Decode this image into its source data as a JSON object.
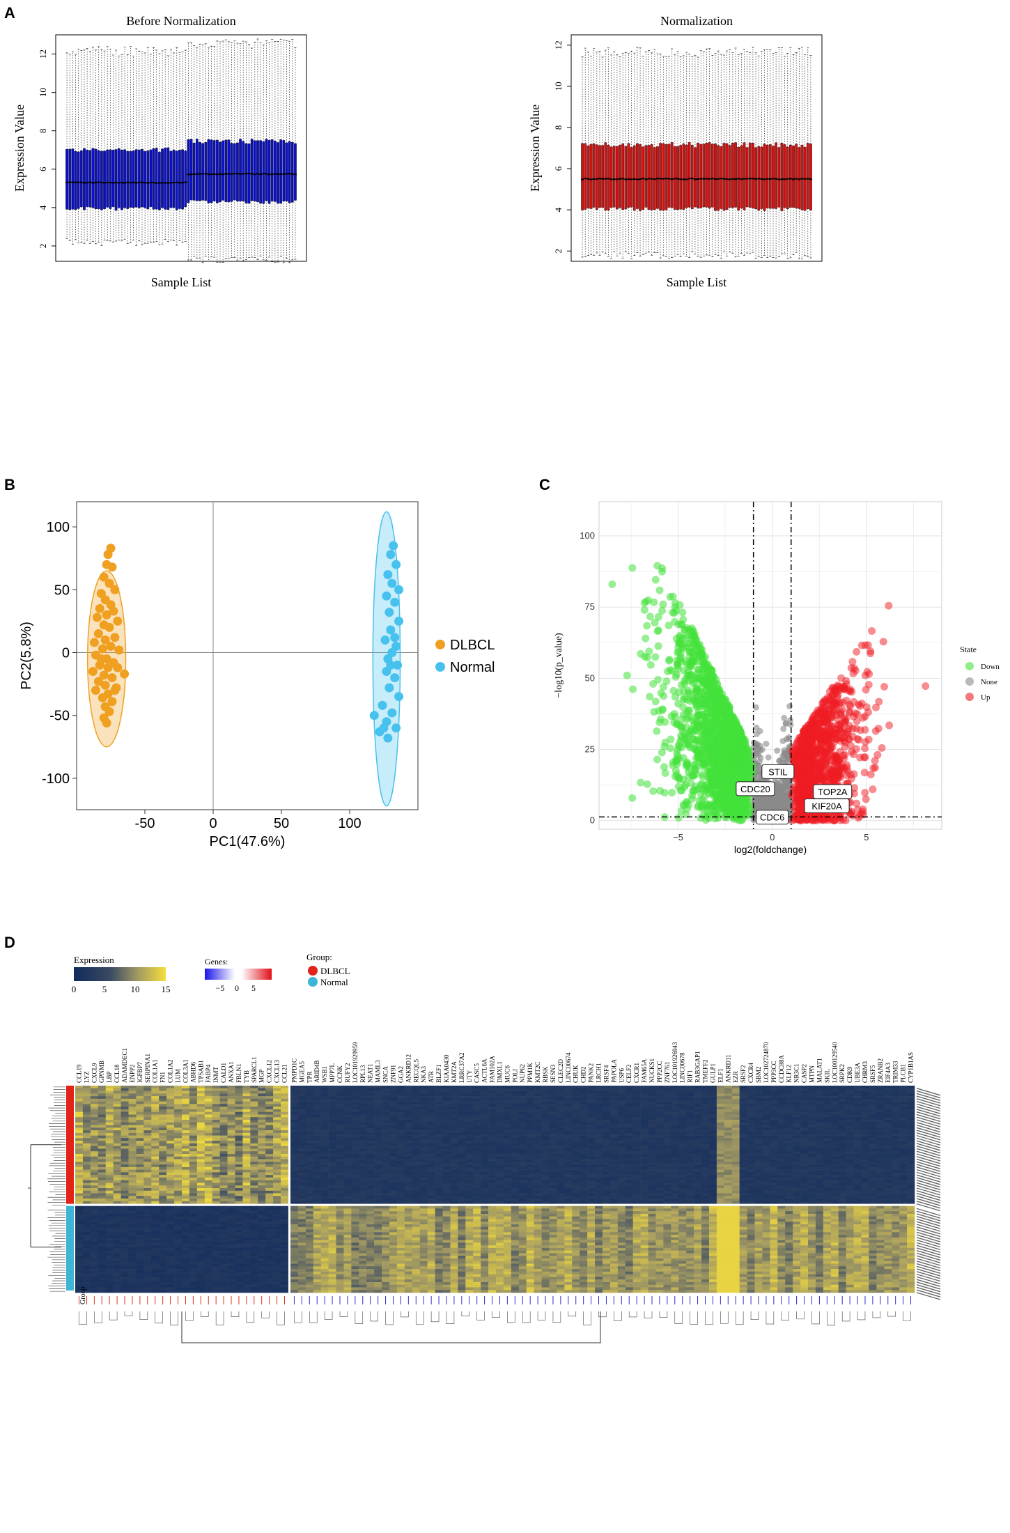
{
  "panels": {
    "a": "A",
    "b": "B",
    "c": "C",
    "d": "D"
  },
  "chart_data": [
    {
      "id": "box-before",
      "type": "box",
      "title": "Before Normalization",
      "xlabel": "Sample List",
      "ylabel": "Expression Value",
      "ylim": [
        1.2,
        13.0
      ],
      "yticks": [
        2,
        4,
        6,
        8,
        10,
        12
      ],
      "n_samples": 80,
      "groups": [
        {
          "count": 42,
          "q1": 3.95,
          "median": 5.3,
          "q3": 7.0,
          "whisker_low": 2.2,
          "whisker_high": 12.4,
          "color": "#0a10c8"
        },
        {
          "count": 38,
          "q1": 4.3,
          "median": 5.75,
          "q3": 7.45,
          "whisker_low": 1.3,
          "whisker_high": 12.8,
          "color": "#0a10c8"
        }
      ]
    },
    {
      "id": "box-after",
      "type": "box",
      "title": "Normalization",
      "xlabel": "Sample List",
      "ylabel": "Expression Value",
      "ylim": [
        1.5,
        12.5
      ],
      "yticks": [
        2,
        4,
        6,
        8,
        10,
        12
      ],
      "n_samples": 80,
      "groups": [
        {
          "count": 80,
          "q1": 4.05,
          "median": 5.5,
          "q3": 7.15,
          "whisker_low": 1.8,
          "whisker_high": 11.9,
          "color": "#d4110f"
        }
      ]
    },
    {
      "id": "pca",
      "type": "scatter",
      "xlabel": "PC1(47.6%)",
      "ylabel": "PC2(5.8%)",
      "xlim": [
        -100,
        150
      ],
      "ylim": [
        -125,
        120
      ],
      "xticks": [
        -50,
        0,
        50,
        100
      ],
      "yticks": [
        -100,
        -50,
        0,
        50,
        100
      ],
      "legend": [
        "DLBCL",
        "Normal"
      ],
      "series": [
        {
          "name": "DLBCL",
          "color": "#f0a020",
          "ellipse": {
            "cx": -78,
            "cy": -5,
            "rx": 14,
            "ry": 70
          },
          "points": [
            [
              -75,
              83
            ],
            [
              -77,
              78
            ],
            [
              -78,
              70
            ],
            [
              -74,
              68
            ],
            [
              -80,
              60
            ],
            [
              -76,
              55
            ],
            [
              -72,
              50
            ],
            [
              -82,
              47
            ],
            [
              -79,
              42
            ],
            [
              -75,
              38
            ],
            [
              -83,
              35
            ],
            [
              -73,
              33
            ],
            [
              -78,
              30
            ],
            [
              -85,
              28
            ],
            [
              -70,
              25
            ],
            [
              -80,
              22
            ],
            [
              -76,
              20
            ],
            [
              -84,
              15
            ],
            [
              -72,
              12
            ],
            [
              -79,
              10
            ],
            [
              -87,
              8
            ],
            [
              -75,
              5
            ],
            [
              -81,
              3
            ],
            [
              -69,
              2
            ],
            [
              -86,
              -2
            ],
            [
              -78,
              -5
            ],
            [
              -73,
              -8
            ],
            [
              -83,
              -10
            ],
            [
              -77,
              -12
            ],
            [
              -65,
              -17
            ],
            [
              -88,
              -15
            ],
            [
              -80,
              -18
            ],
            [
              -74,
              -20
            ],
            [
              -84,
              -23
            ],
            [
              -79,
              -26
            ],
            [
              -71,
              -28
            ],
            [
              -86,
              -30
            ],
            [
              -77,
              -33
            ],
            [
              -81,
              -36
            ],
            [
              -74,
              -39
            ],
            [
              -79,
              -43
            ],
            [
              -76,
              -47
            ],
            [
              -80,
              -52
            ],
            [
              -78,
              -56
            ],
            [
              -72,
              -30
            ],
            [
              -82,
              -5
            ],
            [
              -70,
              -12
            ]
          ]
        },
        {
          "name": "Normal",
          "color": "#47c1ee",
          "ellipse": {
            "cx": 127,
            "cy": -5,
            "rx": 10,
            "ry": 117
          },
          "points": [
            [
              132,
              85
            ],
            [
              130,
              78
            ],
            [
              134,
              70
            ],
            [
              128,
              62
            ],
            [
              131,
              55
            ],
            [
              136,
              50
            ],
            [
              127,
              45
            ],
            [
              133,
              40
            ],
            [
              129,
              32
            ],
            [
              136,
              25
            ],
            [
              130,
              18
            ],
            [
              126,
              10
            ],
            [
              134,
              5
            ],
            [
              131,
              0
            ],
            [
              128,
              -5
            ],
            [
              135,
              -10
            ],
            [
              127,
              -15
            ],
            [
              133,
              -20
            ],
            [
              129,
              -28
            ],
            [
              136,
              -35
            ],
            [
              124,
              -42
            ],
            [
              131,
              -48
            ],
            [
              118,
              -50
            ],
            [
              127,
              -55
            ],
            [
              134,
              -60
            ],
            [
              122,
              -63
            ],
            [
              128,
              -68
            ],
            [
              125,
              -60
            ],
            [
              130,
              -10
            ],
            [
              133,
              12
            ]
          ]
        }
      ]
    },
    {
      "id": "volcano",
      "type": "scatter",
      "xlabel": "log2(foldchange)",
      "ylabel": "−log10(p_value)",
      "xlim": [
        -9.2,
        9.0
      ],
      "ylim": [
        -3,
        112
      ],
      "xticks": [
        -5,
        0,
        5
      ],
      "yticks": [
        0,
        25,
        50,
        75,
        100
      ],
      "fc_threshold": [
        -1,
        1
      ],
      "p_threshold": 1.3,
      "legend_title": "State",
      "legend": [
        {
          "label": "Down",
          "color": "#44e23a"
        },
        {
          "label": "None",
          "color": "#8a8a8a"
        },
        {
          "label": "Up",
          "color": "#f01c24"
        }
      ],
      "labels": [
        {
          "text": "STIL",
          "x": 0.3,
          "y": 16
        },
        {
          "text": "TOP2A",
          "x": 3.2,
          "y": 9
        },
        {
          "text": "CDC20",
          "x": -0.9,
          "y": 10
        },
        {
          "text": "KIF20A",
          "x": 2.9,
          "y": 4
        },
        {
          "text": "CDC6",
          "x": 0.0,
          "y": 0
        }
      ]
    },
    {
      "id": "heatmap",
      "type": "heatmap",
      "legend_expression_title": "Expression",
      "legend_expression_ticks": [
        "0",
        "5",
        "10",
        "15"
      ],
      "legend_genes_title": "Genes:",
      "legend_genes_ticks": [
        "−5",
        "0",
        "5"
      ],
      "legend_group_title": "Group:",
      "groups": [
        {
          "label": "DLBCL",
          "color": "#e2231a"
        },
        {
          "label": "Normal",
          "color": "#3db5d4"
        }
      ],
      "row_group_label": "Group",
      "genes": [
        "CCL19",
        "LYZ",
        "CXCL9",
        "GPNMB",
        "LBP",
        "CCL18",
        "ADAMDEC1",
        "ENPP2",
        "IGFBP7",
        "SERPINA1",
        "COL1A1",
        "FN1",
        "COL1A2",
        "LUM",
        "COL3A1",
        "ABHD6",
        "TPSAB1",
        "FABP4",
        "INMT",
        "CALD1",
        "ANXA1",
        "FBLN1",
        "TYB",
        "SPARCL1",
        "MGP",
        "CXCL12",
        "CXCL13",
        "CCL21",
        "PMPD1C",
        "MGEA5",
        "TPR",
        "ARID4B",
        "WSB1",
        "MPP7L",
        "CCNK",
        "RUFY2",
        "LOC101929959",
        "RPL13",
        "NEAT1",
        "MAML3",
        "SNCA",
        "ZNF91",
        "GGA2",
        "ANKRD12",
        "RECQL5",
        "NKA3",
        "ATR",
        "BLZF1",
        "KIAA0430",
        "KMT2A",
        "LRRC37A2",
        "UTY",
        "CASC5",
        "ACTL6A",
        "FAM102A",
        "DMXL1",
        "MUC6",
        "POLI",
        "NUP62",
        "PPM1K",
        "KMT2C",
        "RBSK",
        "SESN3",
        "CLEC2D",
        "LINC00674",
        "CHUK",
        "CHD2",
        "PANK2",
        "LRCH1",
        "SRSF4",
        "PAPOLA",
        "USP6",
        "CELF2",
        "CXCR1",
        "FAM65A",
        "NUCKS1",
        "PPP2CC",
        "ZNF761",
        "LOC101926943",
        "LINC00678",
        "RIF1",
        "RAB3GAP1",
        "TMEFF2",
        "GULP1",
        "ELF1",
        "ANKRD11",
        "EZR",
        "SRSF2",
        "CXCR4",
        "SBM2",
        "LOC102724870",
        "PPP3CC",
        "CCDC88A",
        "KLF12",
        "NR3C1",
        "CASP2",
        "MTPN",
        "MALAT1",
        "SKIL",
        "LOC100129540",
        "SRPK2",
        "CDK9",
        "UBE3A",
        "CHRM3",
        "SRSF5",
        "ZRANB2",
        "EIF4A3",
        "TRIM33",
        "PLCB1",
        "CYP1B1AS"
      ],
      "n_up": 28,
      "n_rows_dlbcl": 45,
      "n_rows_normal": 33
    }
  ]
}
